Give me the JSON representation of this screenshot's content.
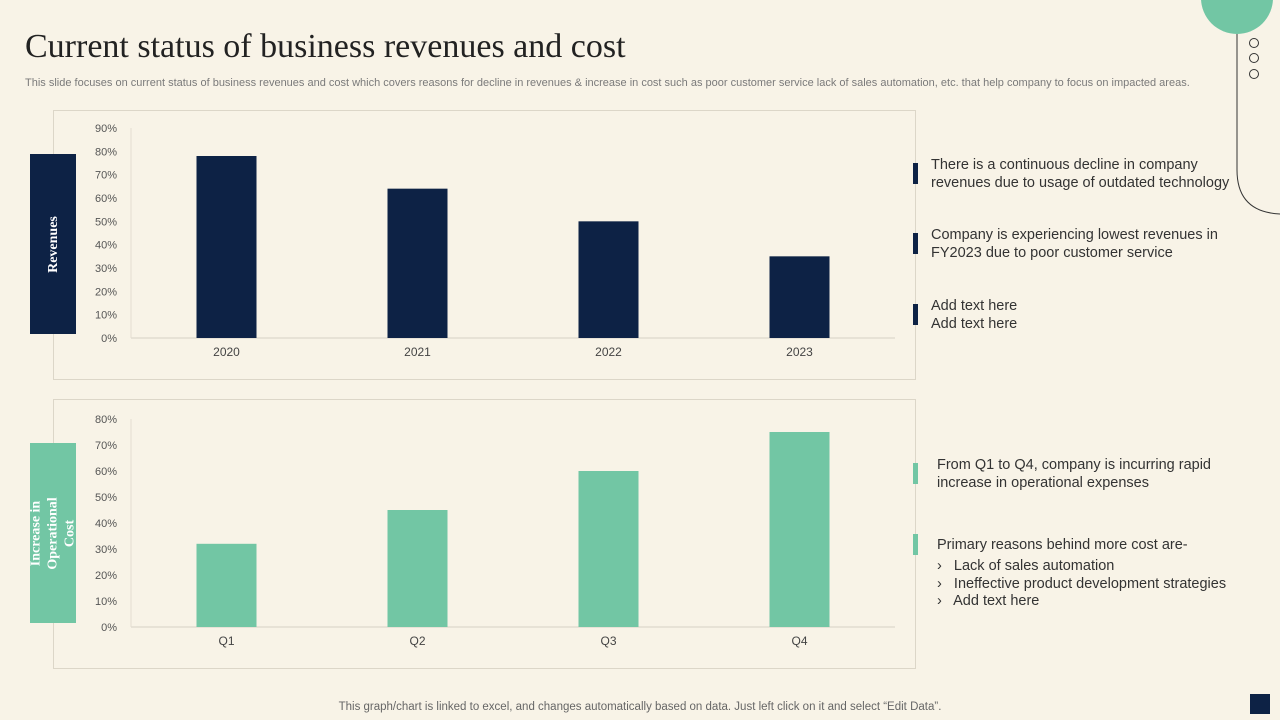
{
  "title": "Current status of business revenues and cost",
  "subtitle": "This slide focuses on current status of business revenues and cost which covers reasons for decline in revenues & increase in cost such as poor customer service lack of sales automation, etc. that help company to focus on impacted areas.",
  "colors": {
    "navy": "#0d2245",
    "green": "#72c6a4",
    "background": "#f8f3e7"
  },
  "revenues": {
    "label": "Revenues",
    "notes": [
      "There is a continuous decline in company revenues due to usage of outdated technology",
      "Company is experiencing lowest revenues in FY2023 due to poor customer service",
      "Add text here\nAdd text here"
    ]
  },
  "cost": {
    "label": "Increase in Operational Cost",
    "note1": "From Q1 to Q4, company is incurring rapid increase in operational expenses",
    "note2": "Primary reasons behind more cost are-",
    "bullets": [
      "Lack of sales automation",
      "Ineffective product development strategies",
      "Add text here"
    ]
  },
  "footer": "This graph/chart is linked to excel,  and changes automatically based on data. Just left click on it and select “Edit Data”.",
  "chart_data": [
    {
      "type": "bar",
      "categories": [
        "2020",
        "2021",
        "2022",
        "2023"
      ],
      "values": [
        78,
        64,
        50,
        35
      ],
      "ylim": [
        0,
        90
      ],
      "yticks": [
        "0%",
        "10%",
        "20%",
        "30%",
        "40%",
        "50%",
        "60%",
        "70%",
        "80%",
        "90%"
      ],
      "color": "#0d2245",
      "grid": false
    },
    {
      "type": "bar",
      "categories": [
        "Q1",
        "Q2",
        "Q3",
        "Q4"
      ],
      "values": [
        32,
        45,
        60,
        75
      ],
      "ylim": [
        0,
        80
      ],
      "yticks": [
        "0%",
        "10%",
        "20%",
        "30%",
        "40%",
        "50%",
        "60%",
        "70%",
        "80%"
      ],
      "color": "#72c6a4",
      "grid": false
    }
  ]
}
